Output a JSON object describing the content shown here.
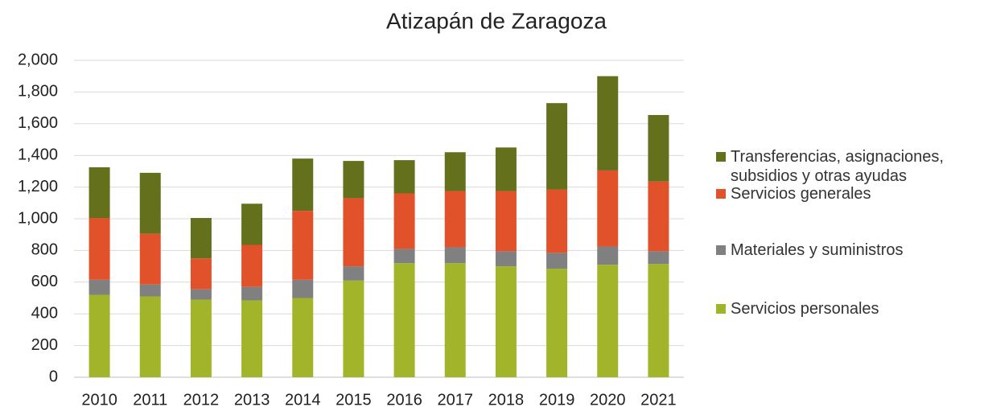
{
  "chart_data": {
    "type": "stacked_bar",
    "title": "Atizapán de Zaragoza",
    "categories": [
      "2010",
      "2011",
      "2012",
      "2013",
      "2014",
      "2015",
      "2016",
      "2017",
      "2018",
      "2019",
      "2020",
      "2021"
    ],
    "series": [
      {
        "name": "Servicios personales",
        "color": "#a2b52a",
        "values": [
          520,
          510,
          490,
          485,
          500,
          610,
          720,
          720,
          700,
          685,
          710,
          715
        ]
      },
      {
        "name": "Materiales y suministros",
        "color": "#808080",
        "values": [
          95,
          75,
          65,
          85,
          115,
          90,
          90,
          100,
          95,
          100,
          115,
          80
        ]
      },
      {
        "name": "Servicios generales",
        "color": "#e2522a",
        "values": [
          390,
          320,
          195,
          265,
          435,
          430,
          350,
          355,
          380,
          400,
          480,
          440
        ]
      },
      {
        "name": "Transferencias, asignaciones, subsidios y otras ayudas",
        "color": "#64701c",
        "values": [
          320,
          385,
          255,
          260,
          330,
          235,
          210,
          245,
          275,
          545,
          595,
          420
        ]
      }
    ],
    "ylim": [
      0,
      2000
    ],
    "yticks": [
      0,
      200,
      400,
      600,
      800,
      {
        "value": 1000,
        "label": "1,000"
      },
      {
        "value": 1200,
        "label": "1,200"
      },
      {
        "value": 1400,
        "label": "1,400"
      },
      {
        "value": 1600,
        "label": "1,600"
      },
      {
        "value": 1800,
        "label": "1,800"
      },
      {
        "value": 2000,
        "label": "2,000"
      }
    ],
    "grid": true,
    "legend": "right"
  }
}
